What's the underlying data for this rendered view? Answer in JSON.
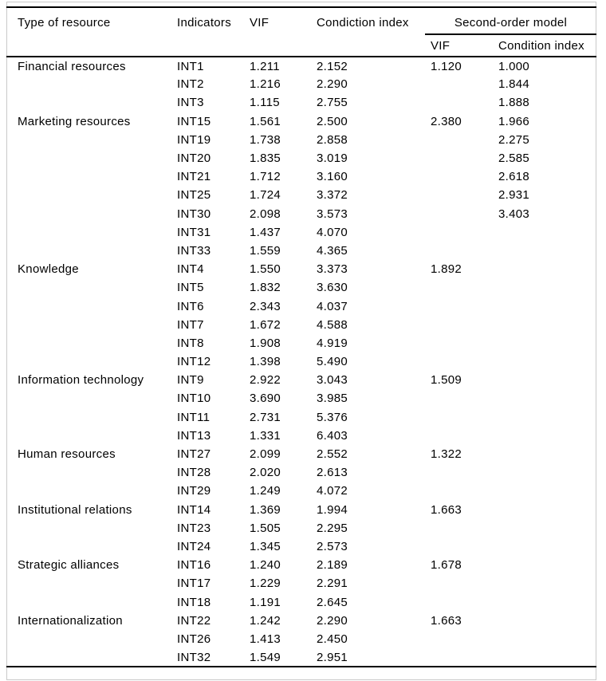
{
  "table": {
    "header": {
      "col_resource": "Type of resource",
      "col_indicators": "Indicators",
      "col_vif": "VIF",
      "col_condition": "Condiction index",
      "group_second_order": "Second-order model",
      "col_so_vif": "VIF",
      "col_so_condition": "Condition index"
    },
    "rows": [
      {
        "resource": "Financial resources",
        "indicator": "INT1",
        "vif": "1.211",
        "ci": "2.152",
        "so_vif": "1.120",
        "so_ci": "1.000"
      },
      {
        "resource": "",
        "indicator": "INT2",
        "vif": "1.216",
        "ci": "2.290",
        "so_vif": "",
        "so_ci": "1.844"
      },
      {
        "resource": "",
        "indicator": "INT3",
        "vif": "1.115",
        "ci": "2.755",
        "so_vif": "",
        "so_ci": "1.888"
      },
      {
        "resource": "Marketing resources",
        "indicator": "INT15",
        "vif": "1.561",
        "ci": "2.500",
        "so_vif": "2.380",
        "so_ci": "1.966"
      },
      {
        "resource": "",
        "indicator": "INT19",
        "vif": "1.738",
        "ci": "2.858",
        "so_vif": "",
        "so_ci": "2.275"
      },
      {
        "resource": "",
        "indicator": "INT20",
        "vif": "1.835",
        "ci": "3.019",
        "so_vif": "",
        "so_ci": "2.585"
      },
      {
        "resource": "",
        "indicator": "INT21",
        "vif": "1.712",
        "ci": "3.160",
        "so_vif": "",
        "so_ci": "2.618"
      },
      {
        "resource": "",
        "indicator": "INT25",
        "vif": "1.724",
        "ci": "3.372",
        "so_vif": "",
        "so_ci": "2.931"
      },
      {
        "resource": "",
        "indicator": "INT30",
        "vif": "2.098",
        "ci": "3.573",
        "so_vif": "",
        "so_ci": "3.403"
      },
      {
        "resource": "",
        "indicator": "INT31",
        "vif": "1.437",
        "ci": "4.070",
        "so_vif": "",
        "so_ci": ""
      },
      {
        "resource": "",
        "indicator": "INT33",
        "vif": "1.559",
        "ci": "4.365",
        "so_vif": "",
        "so_ci": ""
      },
      {
        "resource": "Knowledge",
        "indicator": "INT4",
        "vif": "1.550",
        "ci": "3.373",
        "so_vif": "1.892",
        "so_ci": ""
      },
      {
        "resource": "",
        "indicator": "INT5",
        "vif": "1.832",
        "ci": "3.630",
        "so_vif": "",
        "so_ci": ""
      },
      {
        "resource": "",
        "indicator": "INT6",
        "vif": "2.343",
        "ci": "4.037",
        "so_vif": "",
        "so_ci": ""
      },
      {
        "resource": "",
        "indicator": "INT7",
        "vif": "1.672",
        "ci": "4.588",
        "so_vif": "",
        "so_ci": ""
      },
      {
        "resource": "",
        "indicator": "INT8",
        "vif": "1.908",
        "ci": "4.919",
        "so_vif": "",
        "so_ci": ""
      },
      {
        "resource": "",
        "indicator": "INT12",
        "vif": "1.398",
        "ci": "5.490",
        "so_vif": "",
        "so_ci": ""
      },
      {
        "resource": "Information technology",
        "indicator": "INT9",
        "vif": "2.922",
        "ci": "3.043",
        "so_vif": "1.509",
        "so_ci": ""
      },
      {
        "resource": "",
        "indicator": "INT10",
        "vif": "3.690",
        "ci": "3.985",
        "so_vif": "",
        "so_ci": ""
      },
      {
        "resource": "",
        "indicator": "INT11",
        "vif": "2.731",
        "ci": "5.376",
        "so_vif": "",
        "so_ci": ""
      },
      {
        "resource": "",
        "indicator": "INT13",
        "vif": "1.331",
        "ci": "6.403",
        "so_vif": "",
        "so_ci": ""
      },
      {
        "resource": "Human resources",
        "indicator": "INT27",
        "vif": "2.099",
        "ci": "2.552",
        "so_vif": "1.322",
        "so_ci": ""
      },
      {
        "resource": "",
        "indicator": "INT28",
        "vif": "2.020",
        "ci": "2.613",
        "so_vif": "",
        "so_ci": ""
      },
      {
        "resource": "",
        "indicator": "INT29",
        "vif": "1.249",
        "ci": "4.072",
        "so_vif": "",
        "so_ci": ""
      },
      {
        "resource": "Institutional relations",
        "indicator": "INT14",
        "vif": "1.369",
        "ci": "1.994",
        "so_vif": "1.663",
        "so_ci": ""
      },
      {
        "resource": "",
        "indicator": "INT23",
        "vif": "1.505",
        "ci": "2.295",
        "so_vif": "",
        "so_ci": ""
      },
      {
        "resource": "",
        "indicator": "INT24",
        "vif": "1.345",
        "ci": "2.573",
        "so_vif": "",
        "so_ci": ""
      },
      {
        "resource": "Strategic alliances",
        "indicator": "INT16",
        "vif": "1.240",
        "ci": "2.189",
        "so_vif": "1.678",
        "so_ci": ""
      },
      {
        "resource": "",
        "indicator": "INT17",
        "vif": "1.229",
        "ci": "2.291",
        "so_vif": "",
        "so_ci": ""
      },
      {
        "resource": "",
        "indicator": "INT18",
        "vif": "1.191",
        "ci": "2.645",
        "so_vif": "",
        "so_ci": ""
      },
      {
        "resource": "Internationalization",
        "indicator": "INT22",
        "vif": "1.242",
        "ci": "2.290",
        "so_vif": "1.663",
        "so_ci": ""
      },
      {
        "resource": "",
        "indicator": "INT26",
        "vif": "1.413",
        "ci": "2.450",
        "so_vif": "",
        "so_ci": ""
      },
      {
        "resource": "",
        "indicator": "INT32",
        "vif": "1.549",
        "ci": "2.951",
        "so_vif": "",
        "so_ci": ""
      }
    ]
  }
}
